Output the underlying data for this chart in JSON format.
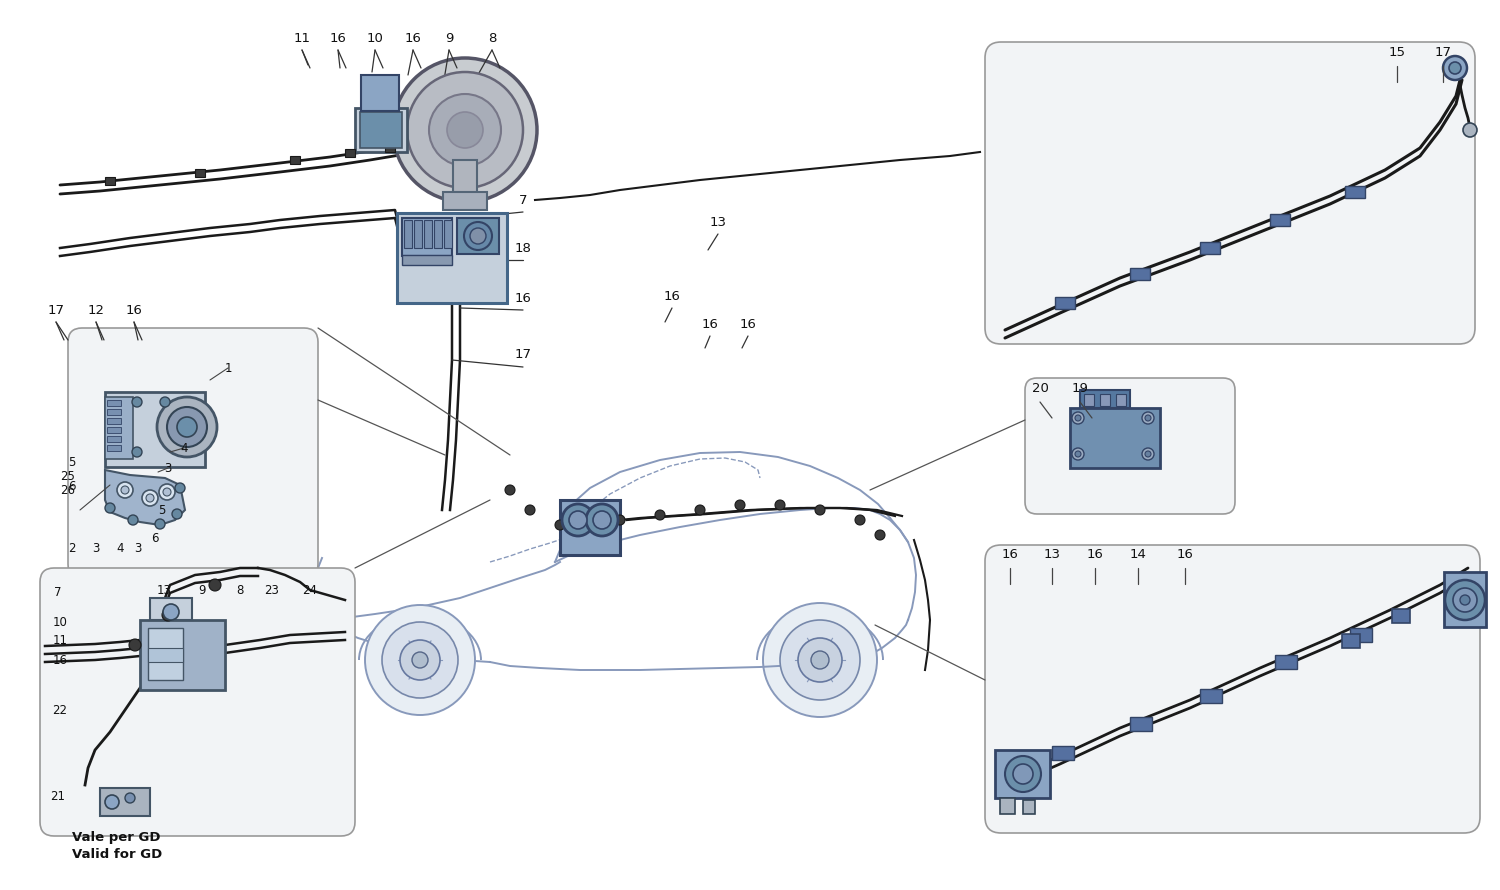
{
  "bg": "#ffffff",
  "lc": "#1a1a1a",
  "part_blue": "#8ba5c4",
  "part_blue2": "#6b8faa",
  "part_gray": "#aab4c0",
  "part_light": "#c5d0dc",
  "inset_bg": "#f2f4f6",
  "inset_border": "#888888",
  "label_fs": 9.5,
  "small_fs": 8.5,
  "fig_w": 15.0,
  "fig_h": 8.9,
  "dpi": 100,
  "top_labels": [
    [
      "11",
      302,
      38
    ],
    [
      "16",
      338,
      38
    ],
    [
      "10",
      375,
      38
    ],
    [
      "16",
      413,
      38
    ],
    [
      "9",
      449,
      38
    ],
    [
      "8",
      492,
      38
    ]
  ],
  "left_labels": [
    [
      "17",
      56,
      310
    ],
    [
      "12",
      96,
      310
    ],
    [
      "16",
      134,
      310
    ]
  ],
  "abs_labels": [
    [
      "7",
      523,
      200
    ],
    [
      "18",
      523,
      248
    ],
    [
      "16",
      523,
      298
    ],
    [
      "17",
      523,
      355
    ],
    [
      "13",
      718,
      222
    ],
    [
      "16",
      672,
      296
    ],
    [
      "16",
      710,
      324
    ],
    [
      "16",
      748,
      324
    ]
  ],
  "inset1_labels": [
    [
      "1",
      228,
      368
    ],
    [
      "4",
      184,
      448
    ],
    [
      "3",
      168,
      468
    ],
    [
      "5",
      72,
      462
    ],
    [
      "5",
      162,
      510
    ],
    [
      "6",
      72,
      486
    ],
    [
      "6",
      155,
      538
    ],
    [
      "25",
      68,
      476
    ],
    [
      "26",
      68,
      490
    ],
    [
      "2",
      72,
      548
    ],
    [
      "3",
      96,
      548
    ],
    [
      "4",
      120,
      548
    ],
    [
      "3",
      138,
      548
    ]
  ],
  "inset2_labels": [
    [
      "7",
      58,
      592
    ],
    [
      "13",
      164,
      590
    ],
    [
      "9",
      202,
      590
    ],
    [
      "8",
      240,
      590
    ],
    [
      "23",
      272,
      590
    ],
    [
      "24",
      310,
      590
    ],
    [
      "10",
      60,
      622
    ],
    [
      "11",
      60,
      640
    ],
    [
      "16",
      60,
      660
    ],
    [
      "22",
      60,
      710
    ],
    [
      "21",
      58,
      796
    ]
  ],
  "inset3_labels": [
    [
      "15",
      1397,
      52
    ],
    [
      "17",
      1443,
      52
    ]
  ],
  "inset4_labels": [
    [
      "20",
      1040,
      388
    ],
    [
      "19",
      1080,
      388
    ]
  ],
  "inset5_labels": [
    [
      "16",
      1010,
      554
    ],
    [
      "13",
      1052,
      554
    ],
    [
      "16",
      1095,
      554
    ],
    [
      "14",
      1138,
      554
    ],
    [
      "16",
      1185,
      554
    ]
  ]
}
